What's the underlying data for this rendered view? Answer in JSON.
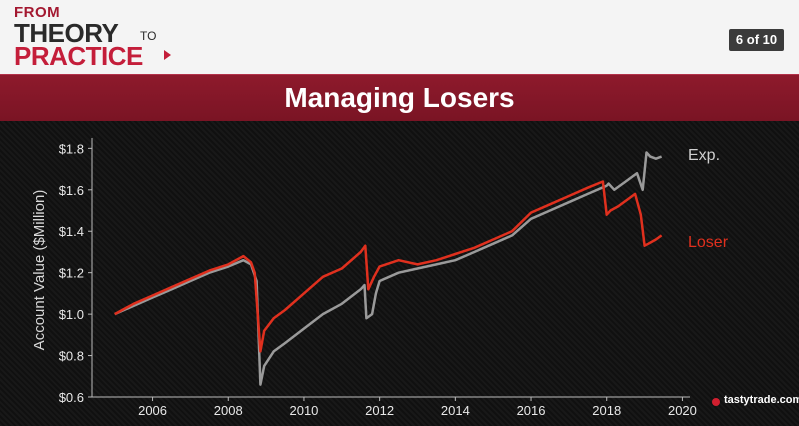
{
  "header": {
    "logo_from": "FROM",
    "logo_theory": "THEORY",
    "logo_to": "TO",
    "logo_practice": "PRACTICE",
    "slide_counter": "6 of 10"
  },
  "title": "Managing Losers",
  "brand": "tastytrade.com",
  "colors": {
    "accent": "#8b1a2b",
    "exp_series": "#9a9a9a",
    "loser_series": "#e0301e"
  },
  "chart_data": {
    "type": "line",
    "title": "Managing Losers",
    "xlabel": "",
    "ylabel": "Account Value ($Million)",
    "xlim": [
      2004.4,
      2020.2
    ],
    "ylim": [
      0.6,
      1.85
    ],
    "x_ticks": [
      "2006",
      "2008",
      "2010",
      "2012",
      "2014",
      "2016",
      "2018",
      "2020"
    ],
    "y_ticks": [
      "$0.6",
      "$0.8",
      "$1.0",
      "$1.2",
      "$1.4",
      "$1.6",
      "$1.8"
    ],
    "grid": false,
    "series": [
      {
        "name": "Exp.",
        "color": "#9a9a9a",
        "x": [
          2005.0,
          2005.5,
          2006.0,
          2006.5,
          2007.0,
          2007.5,
          2008.0,
          2008.4,
          2008.6,
          2008.75,
          2008.85,
          2008.95,
          2009.2,
          2009.5,
          2010.0,
          2010.5,
          2011.0,
          2011.5,
          2011.6,
          2011.65,
          2011.8,
          2011.9,
          2012.0,
          2012.5,
          2013.0,
          2013.5,
          2014.0,
          2014.5,
          2015.0,
          2015.5,
          2016.0,
          2016.5,
          2017.0,
          2017.5,
          2018.0,
          2018.05,
          2018.2,
          2018.5,
          2018.8,
          2018.95,
          2019.05,
          2019.15,
          2019.3,
          2019.45
        ],
        "y": [
          1.0,
          1.04,
          1.08,
          1.12,
          1.16,
          1.2,
          1.23,
          1.26,
          1.24,
          1.16,
          0.66,
          0.75,
          0.82,
          0.86,
          0.93,
          1.0,
          1.05,
          1.12,
          1.14,
          0.98,
          1.0,
          1.1,
          1.16,
          1.2,
          1.22,
          1.24,
          1.26,
          1.3,
          1.34,
          1.38,
          1.46,
          1.5,
          1.54,
          1.58,
          1.62,
          1.63,
          1.6,
          1.64,
          1.68,
          1.6,
          1.78,
          1.76,
          1.75,
          1.76
        ]
      },
      {
        "name": "Loser",
        "color": "#e0301e",
        "x": [
          2005.0,
          2005.5,
          2006.0,
          2006.5,
          2007.0,
          2007.5,
          2008.0,
          2008.4,
          2008.6,
          2008.7,
          2008.85,
          2008.95,
          2009.2,
          2009.5,
          2010.0,
          2010.5,
          2011.0,
          2011.5,
          2011.62,
          2011.7,
          2011.85,
          2012.0,
          2012.5,
          2013.0,
          2013.5,
          2014.0,
          2014.5,
          2015.0,
          2015.5,
          2016.0,
          2016.5,
          2017.0,
          2017.5,
          2017.9,
          2018.0,
          2018.1,
          2018.3,
          2018.6,
          2018.75,
          2018.9,
          2019.0,
          2019.1,
          2019.3,
          2019.45
        ],
        "y": [
          1.0,
          1.05,
          1.09,
          1.13,
          1.17,
          1.21,
          1.24,
          1.28,
          1.25,
          1.2,
          0.82,
          0.92,
          0.98,
          1.02,
          1.1,
          1.18,
          1.22,
          1.3,
          1.33,
          1.12,
          1.18,
          1.23,
          1.26,
          1.24,
          1.26,
          1.29,
          1.32,
          1.36,
          1.4,
          1.49,
          1.53,
          1.57,
          1.61,
          1.64,
          1.48,
          1.5,
          1.52,
          1.56,
          1.58,
          1.48,
          1.33,
          1.34,
          1.36,
          1.38
        ]
      }
    ]
  }
}
